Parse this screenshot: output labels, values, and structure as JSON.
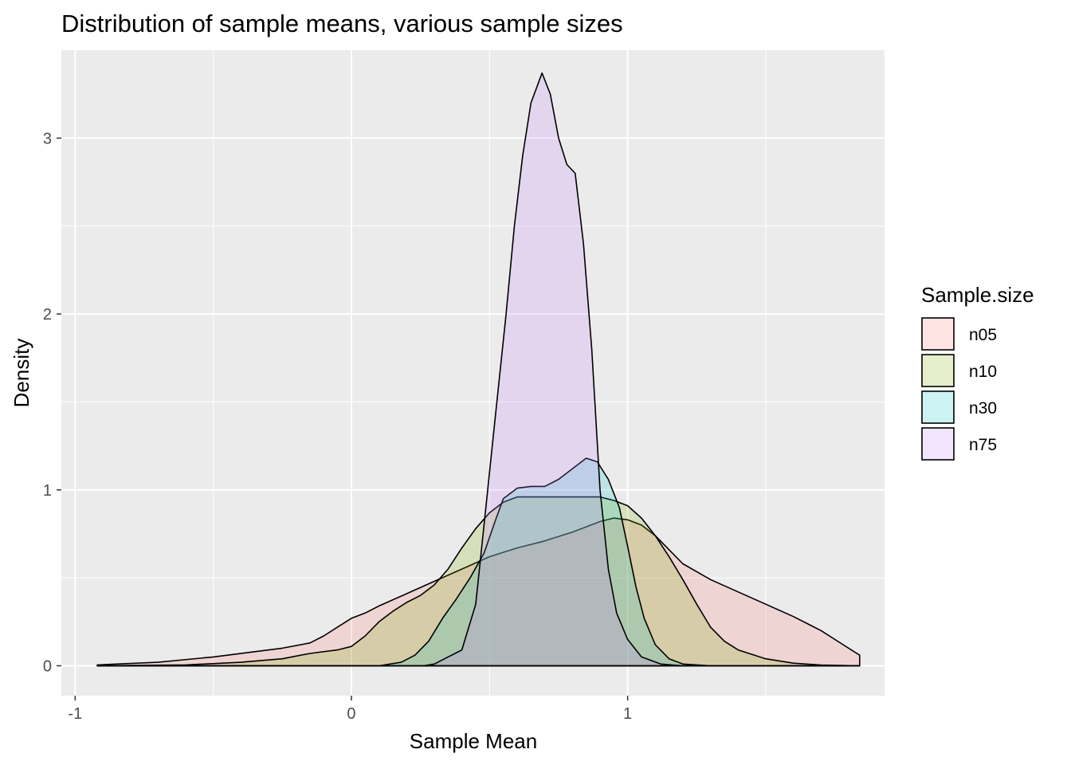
{
  "chart_data": {
    "type": "area",
    "title": "Distribution of sample means, various sample sizes",
    "xlabel": "Sample Mean",
    "ylabel": "Density",
    "xlim": [
      -1.05,
      1.93
    ],
    "ylim": [
      -0.17,
      3.5
    ],
    "x_ticks": [
      -1,
      0,
      1
    ],
    "x_tick_labels": [
      "-1",
      "0",
      "1"
    ],
    "y_ticks": [
      0,
      1,
      2,
      3
    ],
    "y_tick_labels": [
      "0",
      "1",
      "2",
      "3"
    ],
    "x_minor": [
      -0.5,
      0.5,
      1.5
    ],
    "y_minor": [
      0.5,
      1.5,
      2.5
    ],
    "grid": true,
    "panel_background": "#ebebeb",
    "legend": {
      "title": "Sample.size",
      "position": "right"
    },
    "series": [
      {
        "name": "n05",
        "color": "#F8766D",
        "points": [
          [
            -0.92,
            0.005
          ],
          [
            -0.85,
            0.01
          ],
          [
            -0.7,
            0.02
          ],
          [
            -0.5,
            0.05
          ],
          [
            -0.35,
            0.08
          ],
          [
            -0.25,
            0.1
          ],
          [
            -0.15,
            0.13
          ],
          [
            -0.1,
            0.17
          ],
          [
            -0.05,
            0.22
          ],
          [
            0.0,
            0.27
          ],
          [
            0.05,
            0.3
          ],
          [
            0.1,
            0.34
          ],
          [
            0.2,
            0.41
          ],
          [
            0.3,
            0.48
          ],
          [
            0.4,
            0.55
          ],
          [
            0.5,
            0.62
          ],
          [
            0.6,
            0.67
          ],
          [
            0.7,
            0.71
          ],
          [
            0.8,
            0.76
          ],
          [
            0.9,
            0.82
          ],
          [
            0.95,
            0.84
          ],
          [
            1.0,
            0.83
          ],
          [
            1.05,
            0.8
          ],
          [
            1.1,
            0.74
          ],
          [
            1.15,
            0.66
          ],
          [
            1.2,
            0.58
          ],
          [
            1.3,
            0.49
          ],
          [
            1.4,
            0.42
          ],
          [
            1.5,
            0.35
          ],
          [
            1.6,
            0.28
          ],
          [
            1.7,
            0.2
          ],
          [
            1.78,
            0.12
          ],
          [
            1.84,
            0.06
          ]
        ]
      },
      {
        "name": "n10",
        "color": "#7CAE00",
        "points": [
          [
            -0.92,
            0.0
          ],
          [
            -0.6,
            0.005
          ],
          [
            -0.4,
            0.02
          ],
          [
            -0.25,
            0.04
          ],
          [
            -0.15,
            0.07
          ],
          [
            -0.05,
            0.09
          ],
          [
            0.0,
            0.11
          ],
          [
            0.05,
            0.17
          ],
          [
            0.1,
            0.25
          ],
          [
            0.15,
            0.31
          ],
          [
            0.2,
            0.36
          ],
          [
            0.25,
            0.4
          ],
          [
            0.3,
            0.46
          ],
          [
            0.35,
            0.55
          ],
          [
            0.4,
            0.67
          ],
          [
            0.45,
            0.78
          ],
          [
            0.5,
            0.87
          ],
          [
            0.55,
            0.93
          ],
          [
            0.6,
            0.96
          ],
          [
            0.65,
            0.96
          ],
          [
            0.7,
            0.96
          ],
          [
            0.75,
            0.96
          ],
          [
            0.8,
            0.96
          ],
          [
            0.85,
            0.96
          ],
          [
            0.9,
            0.96
          ],
          [
            0.95,
            0.94
          ],
          [
            1.0,
            0.91
          ],
          [
            1.05,
            0.84
          ],
          [
            1.1,
            0.74
          ],
          [
            1.15,
            0.62
          ],
          [
            1.2,
            0.49
          ],
          [
            1.25,
            0.35
          ],
          [
            1.3,
            0.22
          ],
          [
            1.35,
            0.14
          ],
          [
            1.4,
            0.09
          ],
          [
            1.5,
            0.04
          ],
          [
            1.6,
            0.015
          ],
          [
            1.7,
            0.004
          ],
          [
            1.84,
            0.0
          ]
        ]
      },
      {
        "name": "n30",
        "color": "#00BFC4",
        "points": [
          [
            -0.92,
            0.0
          ],
          [
            0.1,
            0.0
          ],
          [
            0.18,
            0.02
          ],
          [
            0.23,
            0.06
          ],
          [
            0.28,
            0.14
          ],
          [
            0.33,
            0.27
          ],
          [
            0.38,
            0.38
          ],
          [
            0.43,
            0.5
          ],
          [
            0.48,
            0.64
          ],
          [
            0.52,
            0.82
          ],
          [
            0.55,
            0.95
          ],
          [
            0.6,
            1.01
          ],
          [
            0.65,
            1.02
          ],
          [
            0.7,
            1.02
          ],
          [
            0.75,
            1.06
          ],
          [
            0.8,
            1.12
          ],
          [
            0.85,
            1.18
          ],
          [
            0.89,
            1.16
          ],
          [
            0.93,
            1.06
          ],
          [
            0.97,
            0.9
          ],
          [
            1.0,
            0.68
          ],
          [
            1.03,
            0.45
          ],
          [
            1.06,
            0.27
          ],
          [
            1.1,
            0.12
          ],
          [
            1.15,
            0.04
          ],
          [
            1.2,
            0.01
          ],
          [
            1.3,
            0.0
          ],
          [
            1.84,
            0.0
          ]
        ]
      },
      {
        "name": "n75",
        "color": "#C77CFF",
        "points": [
          [
            -0.92,
            0.0
          ],
          [
            0.2,
            0.0
          ],
          [
            0.26,
            0.0
          ],
          [
            0.3,
            0.01
          ],
          [
            0.35,
            0.05
          ],
          [
            0.4,
            0.09
          ],
          [
            0.45,
            0.35
          ],
          [
            0.48,
            0.8
          ],
          [
            0.52,
            1.4
          ],
          [
            0.56,
            2.0
          ],
          [
            0.59,
            2.5
          ],
          [
            0.62,
            2.9
          ],
          [
            0.65,
            3.2
          ],
          [
            0.69,
            3.37
          ],
          [
            0.72,
            3.25
          ],
          [
            0.75,
            3.0
          ],
          [
            0.78,
            2.85
          ],
          [
            0.81,
            2.8
          ],
          [
            0.84,
            2.4
          ],
          [
            0.87,
            1.8
          ],
          [
            0.9,
            1.0
          ],
          [
            0.93,
            0.55
          ],
          [
            0.96,
            0.3
          ],
          [
            1.0,
            0.15
          ],
          [
            1.05,
            0.05
          ],
          [
            1.12,
            0.01
          ],
          [
            1.2,
            0.0
          ],
          [
            1.84,
            0.0
          ]
        ]
      }
    ]
  }
}
